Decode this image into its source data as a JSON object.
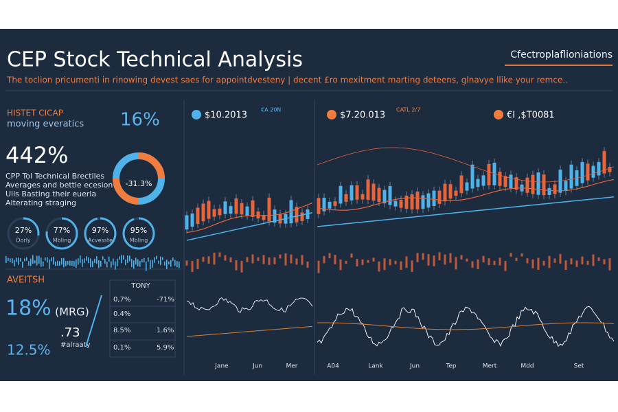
{
  "header": {
    "title": "CEP Stock Technical Analysis",
    "menu": "Cfectroplaflioniations",
    "subtitle": "The toclion pricumenti in rinowing devest saes for appointdvesteny | decent £ro mexitment marting deteens, glnavye llike your remce.."
  },
  "left": {
    "label": "HISTET CICAP",
    "sublabel": "moving everatics",
    "pct": "16%",
    "big": "442%",
    "lines": [
      "CPP Tol Technical Brectiles",
      "Averages and bettle ecesion",
      "Ulls Basting their euerla",
      "Alterating straging"
    ],
    "donut": "-31.3%",
    "gauges": [
      {
        "value": {
          "value": 27,
          "label": "27%"
        },
        "label": "Dorly"
      },
      {
        "value": {
          "value": 77,
          "label": "77%"
        },
        "label": "Mbling"
      },
      {
        "value": {
          "value": 97,
          "label": "97%"
        },
        "label": "Acvesste"
      },
      {
        "value": {
          "value": 95,
          "label": "95%"
        },
        "label": "Mbling"
      }
    ]
  },
  "lower": {
    "label": "AVEITSH",
    "big": "18%",
    "tag": "(MRG)",
    "small": "12.5%",
    "mid": ".73",
    "note": "#alraaty",
    "table": {
      "title": "TONY",
      "rows": [
        [
          "0,7%",
          "-71%"
        ],
        [
          "0.4%"
        ],
        [
          "8.5%",
          "1.6%"
        ],
        [
          "0,1%",
          "5.9%"
        ]
      ]
    }
  },
  "charts": [
    {
      "price": "$10.2013",
      "tag": "€A 20N"
    },
    {
      "price": "$7.20.013",
      "tag": "CATL 2/7"
    },
    {
      "price": "€I ,$T0081"
    }
  ],
  "xlabels": [
    "Jane",
    "Jun",
    "Mer",
    "A04",
    "Lank",
    "Jun",
    "Tep",
    "Mert",
    "Mdd",
    "Set"
  ]
}
